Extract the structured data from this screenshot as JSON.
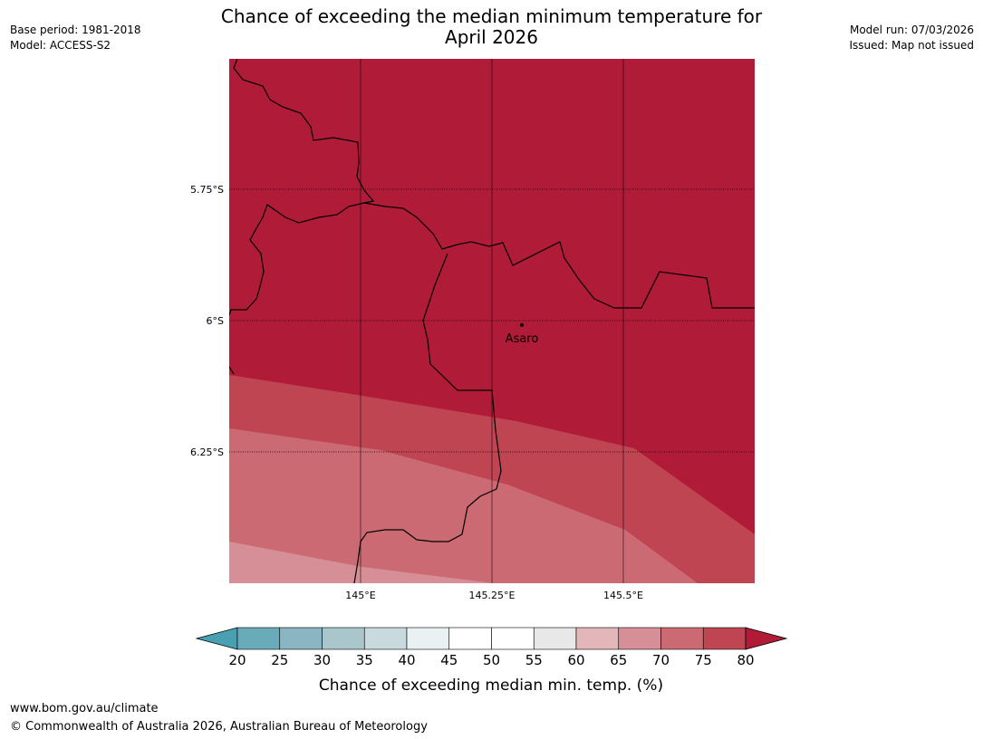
{
  "title": {
    "line1": "Chance of exceeding the median minimum temperature for",
    "line2": "April 2026"
  },
  "meta": {
    "base_period": "Base period: 1981-2018",
    "model": "Model: ACCESS-S2",
    "model_run": "Model run: 07/03/2026",
    "issued": "Issued: Map not issued"
  },
  "map": {
    "lat_labels": [
      "5.75°S",
      "6°S",
      "6.25°S"
    ],
    "lon_labels": [
      "145°E",
      "145.25°E",
      "145.5°E"
    ],
    "place": {
      "name": "Asaro"
    },
    "colors": {
      "band_80_plus": "#b01c38",
      "band_75_80": "#c04553",
      "band_70_75": "#cc6a73",
      "band_65_70": "#d68f96",
      "border": "#000000"
    }
  },
  "colorbar": {
    "ticks": [
      "20",
      "25",
      "30",
      "35",
      "40",
      "45",
      "50",
      "55",
      "60",
      "65",
      "70",
      "75",
      "80"
    ],
    "colors": [
      "#48a0b0",
      "#6aabb9",
      "#8ab5c3",
      "#a9c6cc",
      "#c9dade",
      "#e9f1f3",
      "#ffffff",
      "#ffffff",
      "#e8e8e8",
      "#e3b6ba",
      "#d68f96",
      "#cc6a73",
      "#c04553",
      "#b01c38"
    ],
    "label": "Chance of exceeding median min. temp. (%)"
  },
  "footer": {
    "url": "www.bom.gov.au/climate",
    "copyright": "© Commonwealth of Australia 2026, Australian Bureau of Meteorology"
  }
}
